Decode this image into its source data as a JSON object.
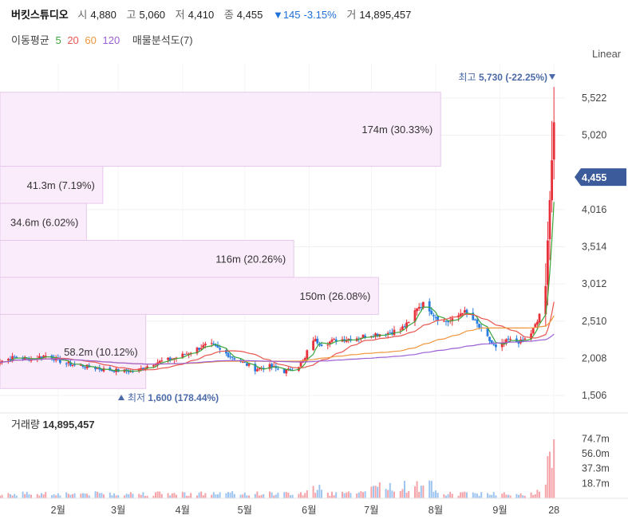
{
  "header": {
    "name": "버킷스튜디오",
    "open_label": "시",
    "open": "4,880",
    "high_label": "고",
    "high": "5,060",
    "low_label": "저",
    "low": "4,410",
    "close_label": "종",
    "close": "4,455",
    "change": "▼145",
    "change_pct": "-3.15%",
    "vol_label": "거",
    "volume": "14,895,457"
  },
  "ma_legend": {
    "label": "이동평균",
    "periods": [
      "5",
      "20",
      "60",
      "120"
    ],
    "colors": [
      "#3aa53a",
      "#e8554e",
      "#f0963c",
      "#9b5fd6"
    ],
    "vp_label": "매물분석도(7)"
  },
  "scale_mode": "Linear",
  "colors": {
    "up": "#e8303a",
    "down": "#2a7de1",
    "vp_fill": "#fbecfb",
    "vp_stroke": "#e6c8ec",
    "price_badge": "#3b5b9a"
  },
  "chart_data": {
    "type": "candlestick",
    "y_ticks": [
      "5,522",
      "5,020",
      "4,016",
      "3,514",
      "3,012",
      "2,510",
      "2,008",
      "1,506"
    ],
    "y_tick_values": [
      5522,
      5020,
      4016,
      3514,
      3012,
      2510,
      2008,
      1506
    ],
    "x_ticks": [
      "2월",
      "3월",
      "4월",
      "5월",
      "6월",
      "7월",
      "8월",
      "9월",
      "28"
    ],
    "x_tick_days": [
      31,
      60,
      91,
      121,
      152,
      182,
      213,
      244,
      270
    ],
    "current_price": "4,455",
    "current_value": 4455,
    "max_marker": {
      "label": "최고",
      "value": "5,730",
      "pct": "(-22.25%)"
    },
    "min_marker": {
      "label": "최저",
      "value": "1,600",
      "pct": "(178.44%)"
    },
    "volume_profile": [
      {
        "label": "174m (30.33%)",
        "low": 4600,
        "high": 5600,
        "width_pct": 78.0
      },
      {
        "label": "41.3m (7.19%)",
        "low": 4100,
        "high": 4600,
        "width_pct": 18.2
      },
      {
        "label": "34.6m (6.02%)",
        "low": 3600,
        "high": 4100,
        "width_pct": 15.3
      },
      {
        "label": "116m (20.26%)",
        "low": 3100,
        "high": 3600,
        "width_pct": 52.0
      },
      {
        "label": "150m (26.08%)",
        "low": 2600,
        "high": 3100,
        "width_pct": 67.0
      },
      {
        "label": "58.2m (10.12%)",
        "low": 1600,
        "high": 2600,
        "width_pct": 25.8
      }
    ],
    "price_keypoints": [
      [
        0,
        1950
      ],
      [
        10,
        2020
      ],
      [
        18,
        2000
      ],
      [
        26,
        2050
      ],
      [
        34,
        1940
      ],
      [
        44,
        1900
      ],
      [
        52,
        1860
      ],
      [
        60,
        1840
      ],
      [
        68,
        1830
      ],
      [
        78,
        1950
      ],
      [
        86,
        2000
      ],
      [
        92,
        2060
      ],
      [
        100,
        2160
      ],
      [
        104,
        2200
      ],
      [
        110,
        2100
      ],
      [
        120,
        1950
      ],
      [
        126,
        1860
      ],
      [
        133,
        1900
      ],
      [
        140,
        1830
      ],
      [
        146,
        1880
      ],
      [
        150,
        2000
      ],
      [
        153,
        2280
      ],
      [
        158,
        2200
      ],
      [
        166,
        2260
      ],
      [
        174,
        2280
      ],
      [
        182,
        2330
      ],
      [
        190,
        2350
      ],
      [
        196,
        2400
      ],
      [
        200,
        2480
      ],
      [
        204,
        2700
      ],
      [
        208,
        2750
      ],
      [
        212,
        2600
      ],
      [
        216,
        2500
      ],
      [
        222,
        2520
      ],
      [
        226,
        2650
      ],
      [
        232,
        2500
      ],
      [
        236,
        2350
      ],
      [
        242,
        2140
      ],
      [
        248,
        2250
      ],
      [
        254,
        2230
      ],
      [
        258,
        2300
      ],
      [
        262,
        2500
      ],
      [
        266,
        2950
      ],
      [
        268,
        4200
      ],
      [
        270,
        5200
      ],
      [
        272,
        4455
      ]
    ],
    "volume_axis_ticks": [
      "74.7m",
      "56.0m",
      "37.3m",
      "18.7m"
    ],
    "volume_axis_values": [
      74.7,
      56.0,
      37.3,
      18.7
    ],
    "volume_label": "거래량",
    "volume_value": "14,895,457"
  }
}
